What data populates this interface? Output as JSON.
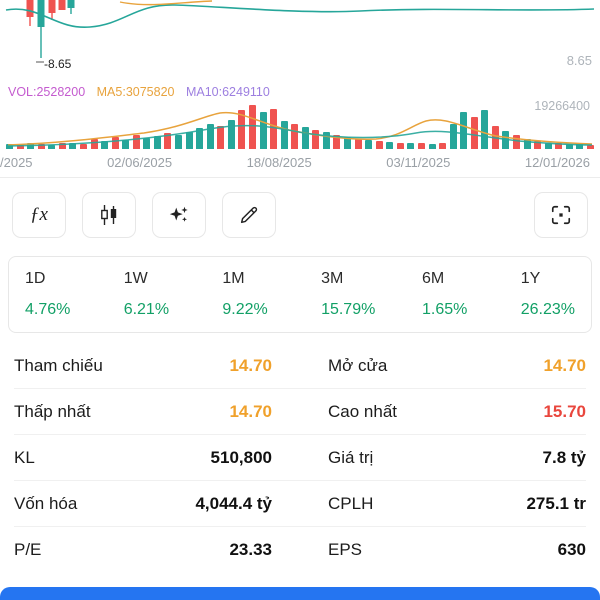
{
  "colors": {
    "positive": "#12a066",
    "reference": "#f0a12b",
    "high": "#e9463d",
    "up": "#26a69a",
    "down": "#ef5350",
    "ma5": "#e8a33d",
    "ma10": "#9d7fe0",
    "vol_text": "#c45bcf",
    "bottom_bar": "#2575f1"
  },
  "chart": {
    "price_marker": "-8.65",
    "price_axis_label": "8.65",
    "legend": {
      "vol": "VOL:2528200",
      "ma5": "MA5:3075820",
      "ma10": "MA10:6249110"
    },
    "volume_axis_label": "19266400",
    "x_labels": [
      "/2025",
      "02/06/2025",
      "18/08/2025",
      "03/11/2025",
      "12/01/2026"
    ],
    "volume_bars": [
      [
        0.1,
        "u"
      ],
      [
        0.08,
        "d"
      ],
      [
        0.12,
        "u"
      ],
      [
        0.1,
        "d"
      ],
      [
        0.08,
        "u"
      ],
      [
        0.14,
        "d"
      ],
      [
        0.12,
        "u"
      ],
      [
        0.1,
        "d"
      ],
      [
        0.22,
        "d"
      ],
      [
        0.18,
        "u"
      ],
      [
        0.26,
        "d"
      ],
      [
        0.2,
        "u"
      ],
      [
        0.3,
        "d"
      ],
      [
        0.24,
        "u"
      ],
      [
        0.28,
        "u"
      ],
      [
        0.34,
        "d"
      ],
      [
        0.3,
        "u"
      ],
      [
        0.38,
        "u"
      ],
      [
        0.45,
        "u"
      ],
      [
        0.55,
        "u"
      ],
      [
        0.5,
        "d"
      ],
      [
        0.62,
        "u"
      ],
      [
        0.85,
        "d"
      ],
      [
        0.95,
        "d"
      ],
      [
        0.8,
        "u"
      ],
      [
        0.88,
        "d"
      ],
      [
        0.6,
        "u"
      ],
      [
        0.55,
        "d"
      ],
      [
        0.48,
        "u"
      ],
      [
        0.42,
        "d"
      ],
      [
        0.36,
        "u"
      ],
      [
        0.3,
        "d"
      ],
      [
        0.26,
        "u"
      ],
      [
        0.22,
        "d"
      ],
      [
        0.2,
        "u"
      ],
      [
        0.18,
        "d"
      ],
      [
        0.15,
        "u"
      ],
      [
        0.12,
        "d"
      ],
      [
        0.14,
        "u"
      ],
      [
        0.12,
        "d"
      ],
      [
        0.1,
        "u"
      ],
      [
        0.12,
        "d"
      ],
      [
        0.55,
        "u"
      ],
      [
        0.8,
        "u"
      ],
      [
        0.7,
        "d"
      ],
      [
        0.85,
        "u"
      ],
      [
        0.5,
        "d"
      ],
      [
        0.4,
        "u"
      ],
      [
        0.3,
        "d"
      ],
      [
        0.22,
        "u"
      ],
      [
        0.18,
        "d"
      ],
      [
        0.14,
        "u"
      ],
      [
        0.12,
        "d"
      ],
      [
        0.1,
        "u"
      ],
      [
        0.12,
        "u"
      ],
      [
        0.08,
        "d"
      ]
    ]
  },
  "toolbar": {
    "fx_label": "ƒx"
  },
  "performance": {
    "periods": [
      {
        "label": "1D",
        "value": "4.76%"
      },
      {
        "label": "1W",
        "value": "6.21%"
      },
      {
        "label": "1M",
        "value": "9.22%"
      },
      {
        "label": "3M",
        "value": "15.79%"
      },
      {
        "label": "6M",
        "value": "1.65%"
      },
      {
        "label": "1Y",
        "value": "26.23%"
      }
    ]
  },
  "stats": {
    "rows": [
      [
        {
          "label": "Tham chiếu",
          "value": "14.70",
          "color": "reference"
        },
        {
          "label": "Mở cửa",
          "value": "14.70",
          "color": "reference"
        }
      ],
      [
        {
          "label": "Thấp nhất",
          "value": "14.70",
          "color": "reference"
        },
        {
          "label": "Cao nhất",
          "value": "15.70",
          "color": "high"
        }
      ],
      [
        {
          "label": "KL",
          "value": "510,800"
        },
        {
          "label": "Giá trị",
          "value": "7.8 tỷ"
        }
      ],
      [
        {
          "label": "Vốn hóa",
          "value": "4,044.4 tỷ"
        },
        {
          "label": "CPLH",
          "value": "275.1 tr"
        }
      ],
      [
        {
          "label": "P/E",
          "value": "23.33"
        },
        {
          "label": "EPS",
          "value": "630"
        }
      ]
    ]
  }
}
